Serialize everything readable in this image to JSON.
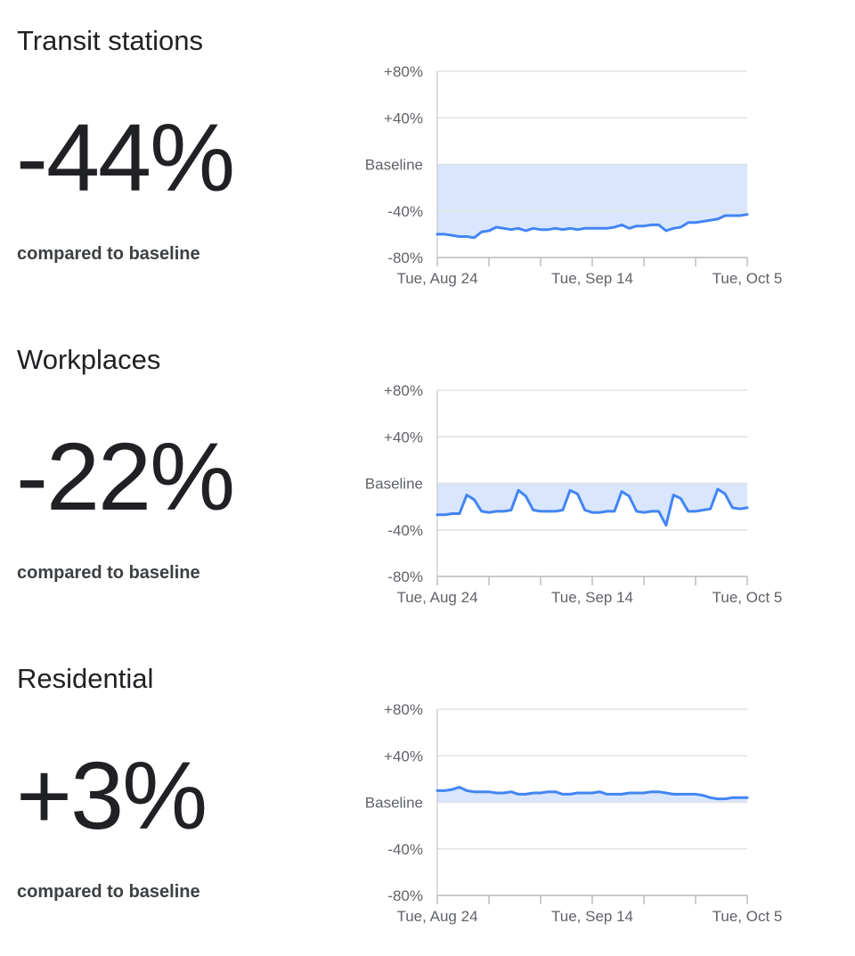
{
  "panels": [
    {
      "title": "Transit stations",
      "value": "-44%",
      "caption": "compared to baseline"
    },
    {
      "title": "Workplaces",
      "value": "-22%",
      "caption": "compared to baseline"
    },
    {
      "title": "Residential",
      "value": "+3%",
      "caption": "compared to baseline"
    }
  ],
  "colors": {
    "line": "#4285f4",
    "fill": "#d9e6fd",
    "grid": "#e2e2e2",
    "axis": "#bdbdbd",
    "label": "#5f6368"
  },
  "chart_data": [
    {
      "type": "area",
      "title": "Transit stations",
      "ylim": [
        -80,
        80
      ],
      "y_ticks": [
        {
          "value": 80,
          "label": "+80%"
        },
        {
          "value": 40,
          "label": "+40%"
        },
        {
          "value": 0,
          "label": "Baseline"
        },
        {
          "value": -40,
          "label": "-40%"
        },
        {
          "value": -80,
          "label": "-80%"
        }
      ],
      "x_range": [
        "2021-08-24",
        "2021-10-05"
      ],
      "x_tick_labels": [
        {
          "date": "2021-08-24",
          "label": "Tue, Aug 24"
        },
        {
          "date": "2021-09-14",
          "label": "Tue, Sep 14"
        },
        {
          "date": "2021-10-05",
          "label": "Tue, Oct 5"
        }
      ],
      "minor_tick_dates": [
        "2021-08-24",
        "2021-08-31",
        "2021-09-07",
        "2021-09-14",
        "2021-09-21",
        "2021-09-28",
        "2021-10-05"
      ],
      "grid": true,
      "baseline_fill": true,
      "series": [
        {
          "x": [
            "2021-08-24",
            "2021-08-25",
            "2021-08-26",
            "2021-08-27",
            "2021-08-28",
            "2021-08-29",
            "2021-08-30",
            "2021-08-31",
            "2021-09-01",
            "2021-09-02",
            "2021-09-03",
            "2021-09-04",
            "2021-09-05",
            "2021-09-06",
            "2021-09-07",
            "2021-09-08",
            "2021-09-09",
            "2021-09-10",
            "2021-09-11",
            "2021-09-12",
            "2021-09-13",
            "2021-09-14",
            "2021-09-15",
            "2021-09-16",
            "2021-09-17",
            "2021-09-18",
            "2021-09-19",
            "2021-09-20",
            "2021-09-21",
            "2021-09-22",
            "2021-09-23",
            "2021-09-24",
            "2021-09-25",
            "2021-09-26",
            "2021-09-27",
            "2021-09-28",
            "2021-09-29",
            "2021-09-30",
            "2021-10-01",
            "2021-10-02",
            "2021-10-03",
            "2021-10-04",
            "2021-10-05"
          ],
          "values": [
            -60,
            -60,
            -61,
            -62,
            -62,
            -63,
            -58,
            -57,
            -54,
            -55,
            -56,
            -55,
            -57,
            -55,
            -56,
            -56,
            -55,
            -56,
            -55,
            -56,
            -55,
            -55,
            -55,
            -55,
            -54,
            -52,
            -55,
            -53,
            -53,
            -52,
            -52,
            -57,
            -55,
            -54,
            -50,
            -50,
            -49,
            -48,
            -47,
            -44,
            -44,
            -44,
            -43
          ]
        }
      ]
    },
    {
      "type": "area",
      "title": "Workplaces",
      "ylim": [
        -80,
        80
      ],
      "y_ticks": [
        {
          "value": 80,
          "label": "+80%"
        },
        {
          "value": 40,
          "label": "+40%"
        },
        {
          "value": 0,
          "label": "Baseline"
        },
        {
          "value": -40,
          "label": "-40%"
        },
        {
          "value": -80,
          "label": "-80%"
        }
      ],
      "x_range": [
        "2021-08-24",
        "2021-10-05"
      ],
      "x_tick_labels": [
        {
          "date": "2021-08-24",
          "label": "Tue, Aug 24"
        },
        {
          "date": "2021-09-14",
          "label": "Tue, Sep 14"
        },
        {
          "date": "2021-10-05",
          "label": "Tue, Oct 5"
        }
      ],
      "minor_tick_dates": [
        "2021-08-24",
        "2021-08-31",
        "2021-09-07",
        "2021-09-14",
        "2021-09-21",
        "2021-09-28",
        "2021-10-05"
      ],
      "grid": true,
      "baseline_fill": true,
      "series": [
        {
          "x": [
            "2021-08-24",
            "2021-08-25",
            "2021-08-26",
            "2021-08-27",
            "2021-08-28",
            "2021-08-29",
            "2021-08-30",
            "2021-08-31",
            "2021-09-01",
            "2021-09-02",
            "2021-09-03",
            "2021-09-04",
            "2021-09-05",
            "2021-09-06",
            "2021-09-07",
            "2021-09-08",
            "2021-09-09",
            "2021-09-10",
            "2021-09-11",
            "2021-09-12",
            "2021-09-13",
            "2021-09-14",
            "2021-09-15",
            "2021-09-16",
            "2021-09-17",
            "2021-09-18",
            "2021-09-19",
            "2021-09-20",
            "2021-09-21",
            "2021-09-22",
            "2021-09-23",
            "2021-09-24",
            "2021-09-25",
            "2021-09-26",
            "2021-09-27",
            "2021-09-28",
            "2021-09-29",
            "2021-09-30",
            "2021-10-01",
            "2021-10-02",
            "2021-10-03",
            "2021-10-04",
            "2021-10-05"
          ],
          "values": [
            -27,
            -27,
            -26,
            -26,
            -10,
            -14,
            -24,
            -25,
            -24,
            -24,
            -23,
            -6,
            -11,
            -23,
            -24,
            -24,
            -24,
            -23,
            -6,
            -9,
            -23,
            -25,
            -25,
            -24,
            -24,
            -7,
            -11,
            -24,
            -25,
            -24,
            -24,
            -36,
            -10,
            -13,
            -24,
            -24,
            -23,
            -22,
            -5,
            -9,
            -21,
            -22,
            -21
          ]
        }
      ]
    },
    {
      "type": "area",
      "title": "Residential",
      "ylim": [
        -80,
        80
      ],
      "y_ticks": [
        {
          "value": 80,
          "label": "+80%"
        },
        {
          "value": 40,
          "label": "+40%"
        },
        {
          "value": 0,
          "label": "Baseline"
        },
        {
          "value": -40,
          "label": "-40%"
        },
        {
          "value": -80,
          "label": "-80%"
        }
      ],
      "x_range": [
        "2021-08-24",
        "2021-10-05"
      ],
      "x_tick_labels": [
        {
          "date": "2021-08-24",
          "label": "Tue, Aug 24"
        },
        {
          "date": "2021-09-14",
          "label": "Tue, Sep 14"
        },
        {
          "date": "2021-10-05",
          "label": "Tue, Oct 5"
        }
      ],
      "minor_tick_dates": [
        "2021-08-24",
        "2021-08-31",
        "2021-09-07",
        "2021-09-14",
        "2021-09-21",
        "2021-09-28",
        "2021-10-05"
      ],
      "grid": true,
      "baseline_fill": true,
      "series": [
        {
          "x": [
            "2021-08-24",
            "2021-08-25",
            "2021-08-26",
            "2021-08-27",
            "2021-08-28",
            "2021-08-29",
            "2021-08-30",
            "2021-08-31",
            "2021-09-01",
            "2021-09-02",
            "2021-09-03",
            "2021-09-04",
            "2021-09-05",
            "2021-09-06",
            "2021-09-07",
            "2021-09-08",
            "2021-09-09",
            "2021-09-10",
            "2021-09-11",
            "2021-09-12",
            "2021-09-13",
            "2021-09-14",
            "2021-09-15",
            "2021-09-16",
            "2021-09-17",
            "2021-09-18",
            "2021-09-19",
            "2021-09-20",
            "2021-09-21",
            "2021-09-22",
            "2021-09-23",
            "2021-09-24",
            "2021-09-25",
            "2021-09-26",
            "2021-09-27",
            "2021-09-28",
            "2021-09-29",
            "2021-09-30",
            "2021-10-01",
            "2021-10-02",
            "2021-10-03",
            "2021-10-04",
            "2021-10-05"
          ],
          "values": [
            10,
            10,
            11,
            13,
            10,
            9,
            9,
            9,
            8,
            8,
            9,
            7,
            7,
            8,
            8,
            9,
            9,
            7,
            7,
            8,
            8,
            8,
            9,
            7,
            7,
            7,
            8,
            8,
            8,
            9,
            9,
            8,
            7,
            7,
            7,
            7,
            6,
            4,
            3,
            3,
            4,
            4,
            4
          ]
        }
      ]
    }
  ]
}
